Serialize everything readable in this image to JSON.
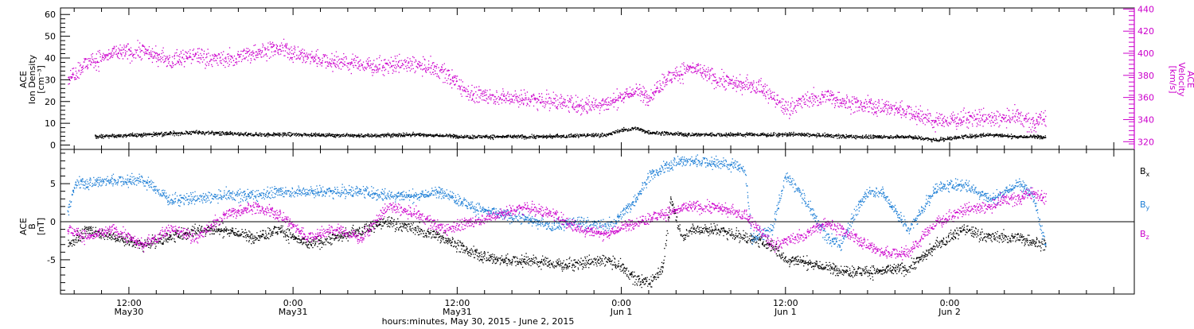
{
  "chart_data": [
    {
      "type": "scatter",
      "panel": "top",
      "left_axis": {
        "title_lines": [
          "ACE",
          "Ion Density",
          "[cm⁻³]"
        ],
        "ylim": [
          -2,
          63
        ],
        "ticks": [
          0,
          10,
          20,
          30,
          40,
          50,
          60
        ],
        "tick_labels": [
          "0",
          "10",
          "20",
          "30",
          "40",
          "50",
          "60"
        ]
      },
      "right_axis": {
        "title_lines": [
          "ACE",
          "Velocity",
          "[km/s]"
        ],
        "ylim": [
          313,
          441
        ],
        "ticks": [
          320,
          340,
          360,
          380,
          400,
          420,
          440
        ],
        "tick_labels": [
          "320",
          "340",
          "360",
          "380",
          "400",
          "420",
          "440"
        ],
        "color": "#cc00cc"
      },
      "series": [
        {
          "axis": "left",
          "color": "#000000",
          "start_hour": 2.5,
          "end_hour": 72,
          "keypoints": [
            [
              2.5,
              4
            ],
            [
              6,
              5
            ],
            [
              10,
              6
            ],
            [
              14,
              5
            ],
            [
              18,
              5
            ],
            [
              22,
              4.5
            ],
            [
              26,
              5
            ],
            [
              30,
              4
            ],
            [
              34,
              4
            ],
            [
              38,
              4.5
            ],
            [
              40,
              5
            ],
            [
              41,
              7
            ],
            [
              42,
              8
            ],
            [
              43,
              6
            ],
            [
              46,
              5
            ],
            [
              50,
              5
            ],
            [
              54,
              5
            ],
            [
              58,
              4
            ],
            [
              62,
              4
            ],
            [
              64,
              2.5
            ],
            [
              66,
              4
            ],
            [
              68,
              5
            ],
            [
              70,
              4
            ],
            [
              72,
              4
            ]
          ]
        },
        {
          "axis": "right",
          "color": "#cc00cc",
          "start_hour": 0.5,
          "end_hour": 72,
          "keypoints": [
            [
              0.5,
              378
            ],
            [
              2,
              392
            ],
            [
              4,
              400
            ],
            [
              6,
              403
            ],
            [
              8,
              394
            ],
            [
              10,
              398
            ],
            [
              12,
              394
            ],
            [
              14,
              401
            ],
            [
              16,
              405
            ],
            [
              18,
              397
            ],
            [
              20,
              393
            ],
            [
              22,
              390
            ],
            [
              24,
              389
            ],
            [
              26,
              390
            ],
            [
              28,
              383
            ],
            [
              30,
              363
            ],
            [
              32,
              361
            ],
            [
              34,
              359
            ],
            [
              36,
              357
            ],
            [
              38,
              353
            ],
            [
              40,
              355
            ],
            [
              41,
              362
            ],
            [
              42,
              366
            ],
            [
              43,
              361
            ],
            [
              44,
              375
            ],
            [
              46,
              387
            ],
            [
              48,
              377
            ],
            [
              50,
              372
            ],
            [
              51,
              371
            ],
            [
              52,
              360
            ],
            [
              53,
              350
            ],
            [
              54,
              356
            ],
            [
              56,
              362
            ],
            [
              58,
              354
            ],
            [
              60,
              352
            ],
            [
              62,
              348
            ],
            [
              64,
              338
            ],
            [
              66,
              342
            ],
            [
              68,
              340
            ],
            [
              70,
              343
            ],
            [
              71,
              336
            ],
            [
              72,
              343
            ]
          ]
        }
      ]
    },
    {
      "type": "scatter",
      "panel": "bottom",
      "left_axis": {
        "title_lines": [
          "ACE",
          "B",
          "[nT]"
        ],
        "ylim": [
          -9.5,
          9.5
        ],
        "ticks": [
          -5,
          0,
          5
        ],
        "tick_labels": [
          "-5",
          "0",
          "5"
        ]
      },
      "zero_line": true,
      "series": [
        {
          "name": "Bₓ",
          "color": "#000000",
          "start_hour": 0.5,
          "end_hour": 72,
          "keypoints": [
            [
              0.5,
              -3
            ],
            [
              2,
              -1
            ],
            [
              4,
              -2
            ],
            [
              6,
              -3
            ],
            [
              8,
              -2
            ],
            [
              10,
              -1
            ],
            [
              12,
              -1
            ],
            [
              14,
              -2
            ],
            [
              16,
              -1
            ],
            [
              18,
              -3
            ],
            [
              20,
              -2
            ],
            [
              22,
              -1
            ],
            [
              24,
              0
            ],
            [
              26,
              -1
            ],
            [
              28,
              -2
            ],
            [
              30,
              -4
            ],
            [
              32,
              -5
            ],
            [
              34,
              -5
            ],
            [
              36,
              -5.5
            ],
            [
              38,
              -5.5
            ],
            [
              40,
              -5
            ],
            [
              41,
              -6
            ],
            [
              42,
              -7.5
            ],
            [
              43,
              -8
            ],
            [
              44,
              -6
            ],
            [
              44.6,
              3
            ],
            [
              45.4,
              -2
            ],
            [
              46,
              -1
            ],
            [
              48,
              -1
            ],
            [
              50,
              -2
            ],
            [
              52,
              -3
            ],
            [
              53,
              -5
            ],
            [
              54,
              -5
            ],
            [
              56,
              -6
            ],
            [
              58,
              -6.5
            ],
            [
              60,
              -6.5
            ],
            [
              62,
              -6
            ],
            [
              64,
              -3
            ],
            [
              66,
              -1
            ],
            [
              68,
              -2
            ],
            [
              70,
              -2
            ],
            [
              72,
              -3
            ]
          ]
        },
        {
          "name": "Bᵧ",
          "color": "#1e7fd6",
          "start_hour": 0.5,
          "end_hour": 72,
          "keypoints": [
            [
              0.5,
              1
            ],
            [
              1,
              5
            ],
            [
              4,
              5.5
            ],
            [
              6,
              5.5
            ],
            [
              8,
              3
            ],
            [
              10,
              3
            ],
            [
              12,
              3.5
            ],
            [
              14,
              3.5
            ],
            [
              16,
              4
            ],
            [
              18,
              4
            ],
            [
              20,
              4
            ],
            [
              22,
              4
            ],
            [
              24,
              3.5
            ],
            [
              26,
              3.5
            ],
            [
              28,
              4
            ],
            [
              30,
              2
            ],
            [
              32,
              1
            ],
            [
              34,
              0.5
            ],
            [
              36,
              -0.5
            ],
            [
              38,
              0
            ],
            [
              40,
              -0.5
            ],
            [
              41,
              1
            ],
            [
              42,
              3
            ],
            [
              43,
              6
            ],
            [
              44,
              7
            ],
            [
              45,
              8
            ],
            [
              47,
              8
            ],
            [
              49,
              7.5
            ],
            [
              50,
              7
            ],
            [
              50.5,
              -2
            ],
            [
              52,
              -1
            ],
            [
              53,
              6
            ],
            [
              54,
              4
            ],
            [
              55,
              1
            ],
            [
              56,
              -2
            ],
            [
              57,
              -3
            ],
            [
              58,
              1
            ],
            [
              59,
              4
            ],
            [
              60,
              4
            ],
            [
              62,
              -1
            ],
            [
              64,
              4.5
            ],
            [
              66,
              5
            ],
            [
              68,
              3
            ],
            [
              70,
              5
            ],
            [
              71,
              4
            ],
            [
              72,
              -3
            ]
          ]
        },
        {
          "name": "B_z",
          "color": "#cc00cc",
          "start_hour": 0.5,
          "end_hour": 72,
          "keypoints": [
            [
              0.5,
              -1
            ],
            [
              2,
              -2
            ],
            [
              4,
              -1
            ],
            [
              6,
              -3
            ],
            [
              8,
              -1
            ],
            [
              10,
              -2
            ],
            [
              12,
              1
            ],
            [
              14,
              2
            ],
            [
              16,
              1
            ],
            [
              18,
              -2
            ],
            [
              20,
              -1
            ],
            [
              22,
              -2
            ],
            [
              24,
              2
            ],
            [
              26,
              1
            ],
            [
              28,
              -1
            ],
            [
              30,
              0
            ],
            [
              32,
              1
            ],
            [
              34,
              2
            ],
            [
              36,
              1
            ],
            [
              38,
              -1
            ],
            [
              40,
              -1.5
            ],
            [
              42,
              0
            ],
            [
              44,
              1
            ],
            [
              46,
              2
            ],
            [
              48,
              2
            ],
            [
              50,
              1
            ],
            [
              52,
              -3
            ],
            [
              54,
              -2
            ],
            [
              56,
              0
            ],
            [
              58,
              -2
            ],
            [
              60,
              -4
            ],
            [
              62,
              -4
            ],
            [
              64,
              0
            ],
            [
              66,
              1.5
            ],
            [
              68,
              2
            ],
            [
              69,
              3
            ],
            [
              70,
              3
            ],
            [
              71,
              4
            ],
            [
              72,
              3
            ]
          ]
        }
      ]
    }
  ],
  "x_axis": {
    "xlim_hours": [
      0,
      78.5
    ],
    "major_ticks": [
      5,
      17,
      29,
      41,
      53,
      65,
      77
    ],
    "tick_labels": [
      {
        "hour": 5,
        "time": "12:00",
        "date": "May30"
      },
      {
        "hour": 17,
        "time": "0:00",
        "date": "May31"
      },
      {
        "hour": 29,
        "time": "12:00",
        "date": "May31"
      },
      {
        "hour": 41,
        "time": "0:00",
        "date": "Jun 1"
      },
      {
        "hour": 53,
        "time": "12:00",
        "date": "Jun 1"
      },
      {
        "hour": 65,
        "time": "0:00",
        "date": "Jun 2"
      }
    ],
    "label": "hours:minutes, May 30, 2015 - June  2, 2015"
  },
  "legend": {
    "items": [
      {
        "text": "B",
        "sub": "x",
        "color": "#000000"
      },
      {
        "text": "B",
        "sub": "y",
        "color": "#1e7fd6"
      },
      {
        "text": "B",
        "sub": "z",
        "color": "#cc00cc"
      }
    ]
  }
}
